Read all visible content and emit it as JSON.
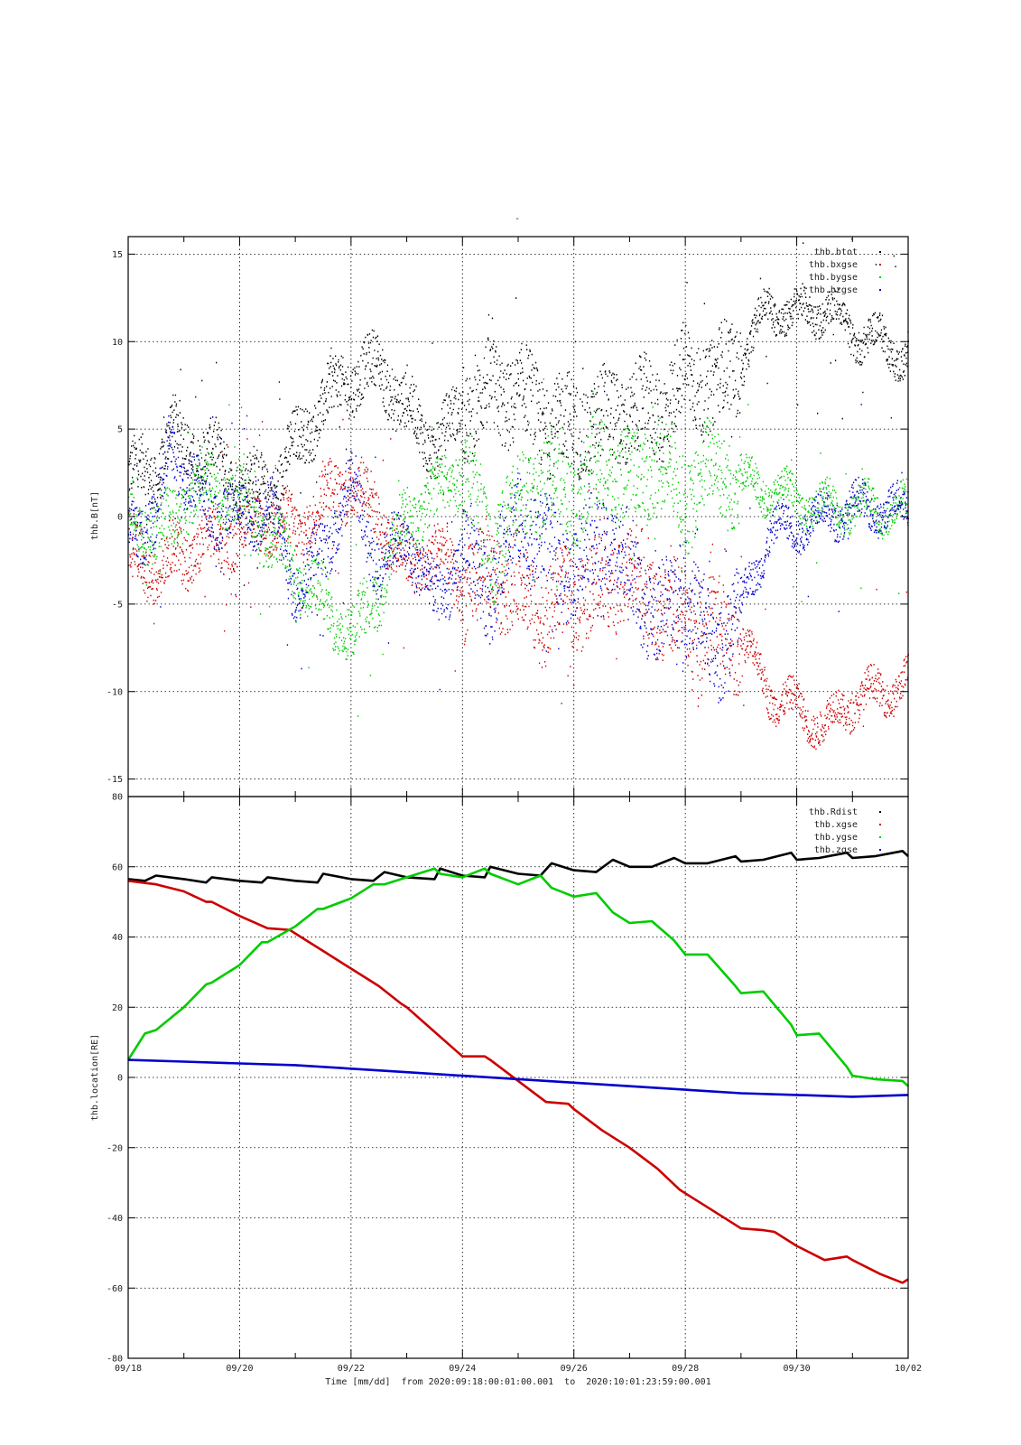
{
  "page": {
    "title": "-",
    "footer": "Time [mm/dd]  from 2020:09:18:00:01:00.001  to  2020:10:01:23:59:00.001"
  },
  "chart_data": [
    {
      "type": "scatter",
      "ylabel": "thb.B[nT]",
      "ylim": [
        -16,
        16
      ],
      "yticks": [
        -15,
        -10,
        -5,
        0,
        5,
        10,
        15
      ],
      "xlim": [
        "2020-09-18",
        "2020-10-02"
      ],
      "grid": true,
      "legend_position": "top-right",
      "series": [
        {
          "name": "thb.btot",
          "color": "#000000",
          "x": [
            0,
            0.5,
            0.75,
            1,
            1.5,
            2,
            2.5,
            3,
            3.5,
            4,
            4.5,
            5,
            5.5,
            6,
            6.5,
            7,
            7.5,
            8,
            8.5,
            9,
            9.5,
            10,
            10.5,
            11,
            11.5,
            12,
            12.5,
            13,
            13.5,
            14
          ],
          "y": [
            2.5,
            2.5,
            5,
            4,
            3.5,
            2,
            1.5,
            4,
            6.5,
            8,
            8.5,
            6,
            4,
            6,
            7,
            7,
            5.5,
            5,
            5.5,
            6,
            6,
            8,
            7.5,
            9,
            12,
            11.5,
            12,
            10.5,
            10,
            9
          ]
        },
        {
          "name": "thb.bxgse",
          "color": "#cc0000",
          "x": [
            0,
            0.5,
            0.75,
            1,
            1.5,
            2,
            2.5,
            3,
            3.5,
            4,
            4.5,
            5,
            5.5,
            6,
            6.5,
            7,
            7.5,
            8,
            8.5,
            9,
            9.5,
            10,
            10.5,
            11,
            11.5,
            12,
            12.5,
            13,
            13.5,
            14
          ],
          "y": [
            -2,
            -3,
            -2.5,
            -2,
            -1.5,
            -1,
            0,
            -1,
            1,
            2,
            0,
            -3,
            -2,
            -4,
            -3,
            -4,
            -5.5,
            -4.5,
            -4,
            -3,
            -5,
            -6,
            -6.5,
            -7,
            -10,
            -11,
            -12,
            -10.5,
            -10,
            -9.5
          ]
        },
        {
          "name": "thb.bygse",
          "color": "#00cc00",
          "x": [
            0,
            0.5,
            0.75,
            1,
            1.5,
            2,
            2.5,
            3,
            3.5,
            4,
            4.5,
            5,
            5.5,
            6,
            6.5,
            7,
            7.5,
            8,
            8.5,
            9,
            9.5,
            10,
            10.5,
            11,
            11.5,
            12,
            12.5,
            13,
            13.5,
            14
          ],
          "y": [
            0.5,
            -1,
            -0.5,
            1,
            2,
            1,
            -1,
            -3,
            -5,
            -7,
            -4,
            0,
            1,
            3,
            -2,
            1,
            2,
            1,
            3,
            2,
            3,
            1,
            3,
            2,
            1.5,
            1,
            0.5,
            0.5,
            0.5,
            0.5
          ]
        },
        {
          "name": "thb.bzgse",
          "color": "#0000cc",
          "x": [
            0,
            0.5,
            0.75,
            1,
            1.5,
            2,
            2.5,
            3,
            3.5,
            4,
            4.5,
            5,
            5.5,
            6,
            6.5,
            7,
            7.5,
            8,
            8.5,
            9,
            9.5,
            10,
            10.5,
            11,
            11.5,
            12,
            12.5,
            13,
            13.5,
            14
          ],
          "y": [
            0,
            -1,
            5,
            2,
            0.5,
            0,
            0.5,
            -4,
            -2,
            2,
            -3,
            -1,
            -5,
            -2,
            -4,
            0,
            -2,
            -3,
            -1,
            -3,
            -6,
            -4,
            -8,
            -5,
            -1,
            -0.5,
            0,
            0.5,
            0.5,
            0.3
          ]
        }
      ]
    },
    {
      "type": "line",
      "xlabel": "Time [mm/dd]",
      "ylabel": "thb.location[RE]",
      "ylim": [
        -80,
        80
      ],
      "yticks": [
        -80,
        -60,
        -40,
        -20,
        0,
        20,
        40,
        60,
        80
      ],
      "xlim": [
        "2020-09-18",
        "2020-10-02"
      ],
      "xticks": [
        "09/18",
        "09/20",
        "09/22",
        "09/24",
        "09/26",
        "09/28",
        "09/30",
        "10/02"
      ],
      "grid": true,
      "legend_position": "top-right",
      "series": [
        {
          "name": "thb.Rdist",
          "color": "#000000",
          "x": [
            0,
            0.3,
            0.5,
            1,
            1.4,
            1.5,
            2,
            2.4,
            2.5,
            3,
            3.4,
            3.5,
            4,
            4.4,
            4.6,
            5,
            5.5,
            5.6,
            6,
            6.4,
            6.5,
            7,
            7.4,
            7.6,
            8,
            8.4,
            8.7,
            9,
            9.4,
            9.8,
            10,
            10.4,
            10.9,
            11,
            11.4,
            11.9,
            12,
            12.4,
            12.9,
            13,
            13.4,
            13.9,
            14
          ],
          "y": [
            56.5,
            56,
            57.5,
            56.5,
            55.5,
            57,
            56,
            55.5,
            57,
            56,
            55.5,
            58,
            56.5,
            56,
            58.5,
            57,
            56.5,
            59.5,
            57.5,
            57,
            60,
            58,
            57.5,
            61,
            59,
            58.5,
            62,
            60,
            60,
            62.5,
            61,
            61,
            63,
            61.5,
            62,
            64,
            62,
            62.5,
            64,
            62.5,
            63,
            64.5,
            63
          ]
        },
        {
          "name": "thb.xgse",
          "color": "#cc0000",
          "x": [
            0,
            0.5,
            1,
            1.4,
            1.5,
            2,
            2.5,
            2.9,
            3,
            3.5,
            3.9,
            4,
            4.5,
            4.9,
            5,
            5.5,
            6,
            6.4,
            6.5,
            7,
            7.5,
            7.9,
            8,
            8.5,
            9,
            9.5,
            9.9,
            10,
            10.5,
            11,
            11.4,
            11.6,
            12,
            12.5,
            12.9,
            13,
            13.5,
            13.9,
            14
          ],
          "y": [
            56,
            55,
            53,
            50,
            50,
            46,
            42.5,
            42,
            41,
            36,
            32,
            31,
            26,
            21,
            20,
            13,
            6,
            6,
            5,
            -1,
            -7,
            -7.5,
            -9,
            -15,
            -20,
            -26,
            -32,
            -33,
            -38,
            -43,
            -43.5,
            -44,
            -48,
            -52,
            -51,
            -52,
            -56,
            -58.5,
            -57.5
          ]
        },
        {
          "name": "thb.ygse",
          "color": "#00cc00",
          "x": [
            0,
            0.3,
            0.5,
            1,
            1.4,
            1.5,
            2,
            2.4,
            2.5,
            3,
            3.4,
            3.5,
            4,
            4.4,
            4.6,
            5,
            5.5,
            5.6,
            6,
            6.4,
            6.5,
            7,
            7.4,
            7.6,
            8,
            8.4,
            8.7,
            9,
            9.4,
            9.8,
            10,
            10.4,
            10.9,
            11,
            11.4,
            11.9,
            12,
            12.4,
            12.9,
            13,
            13.4,
            13.9,
            14
          ],
          "y": [
            5,
            12.5,
            13.5,
            20,
            26.5,
            27,
            32,
            38.5,
            38.5,
            43,
            48,
            48,
            51,
            55,
            55,
            57,
            59.5,
            58,
            57,
            59.5,
            58,
            55,
            57.5,
            54,
            51.5,
            52.5,
            47,
            44,
            44.5,
            39,
            35,
            35,
            26,
            24,
            24.5,
            15,
            12,
            12.5,
            3,
            0.5,
            -0.5,
            -1,
            -2.5
          ]
        },
        {
          "name": "thb.zgse",
          "color": "#0000cc",
          "x": [
            0,
            1,
            2,
            3,
            4,
            5,
            6,
            7,
            8,
            9,
            10,
            11,
            12,
            13,
            14
          ],
          "y": [
            5,
            4.5,
            4,
            3.5,
            2.5,
            1.5,
            0.5,
            -0.5,
            -1.5,
            -2.5,
            -3.5,
            -4.5,
            -5,
            -5.5,
            -5
          ]
        }
      ]
    }
  ]
}
